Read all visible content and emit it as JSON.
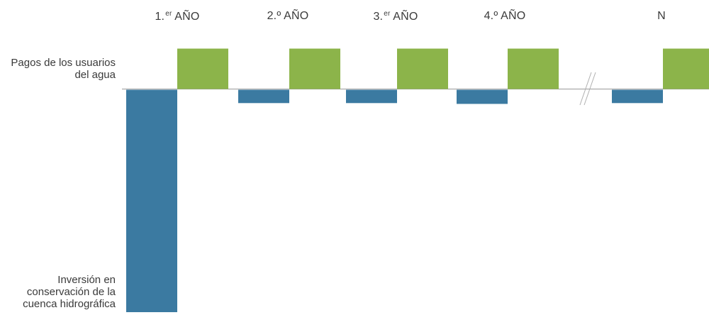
{
  "chart_data": {
    "type": "bar",
    "title": "",
    "categories": [
      {
        "main": "1.",
        "sup": "er",
        "rest": " AÑO"
      },
      {
        "main": "2.º AÑO",
        "sup": "",
        "rest": ""
      },
      {
        "main": "3.",
        "sup": "er",
        "rest": " AÑO"
      },
      {
        "main": "4.º AÑO",
        "sup": "",
        "rest": ""
      },
      {
        "main": "N",
        "sup": "",
        "rest": ""
      }
    ],
    "series": [
      {
        "name": "Pagos de los usuarios del agua",
        "color": "#8cb44a",
        "values": [
          1,
          1,
          1,
          1,
          1
        ]
      },
      {
        "name": "Inversión en conservación de la cuenca hidrográfica",
        "color": "#3b7aa1",
        "values": [
          -5.5,
          -0.33,
          -0.33,
          -0.35,
          -0.33
        ]
      }
    ],
    "axis_break": "between 4.º AÑO and N",
    "grid": false,
    "legend": "left"
  },
  "labels": {
    "top": "Pagos de los usuarios del agua",
    "bottom": "Inversión en conservación de la cuenca hidrográfica"
  }
}
